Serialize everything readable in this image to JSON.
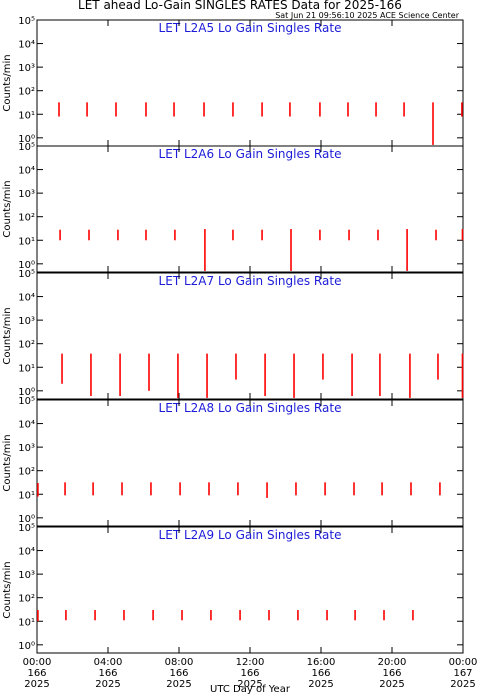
{
  "header": {
    "title": "LET ahead Lo-Gain SINGLES RATES Data for 2025-166",
    "timestamp": "Sat Jun 21 09:56:10 2025 ACE Science Center"
  },
  "chart_data": [
    {
      "type": "range",
      "title": "LET L2A5 Lo Gain Singles Rate",
      "ylabel": "Counts/min",
      "color": "#ff0000",
      "log_y": true,
      "xlim": [
        0,
        24
      ],
      "ylim": [
        0.45,
        100000
      ],
      "yticks": [
        {
          "value": 1,
          "label": "10⁰"
        },
        {
          "value": 10,
          "label": "10¹"
        },
        {
          "value": 100,
          "label": "10²"
        },
        {
          "value": 1000,
          "label": "10³"
        },
        {
          "value": 10000,
          "label": "10⁴"
        },
        {
          "value": 100000,
          "label": "10⁵"
        }
      ],
      "x": [
        1.24,
        2.82,
        4.45,
        6.14,
        7.72,
        9.41,
        11.04,
        12.68,
        14.25,
        15.94,
        17.52,
        19.1,
        20.68,
        22.31,
        23.94
      ],
      "values": [
        32,
        32,
        32,
        32,
        32,
        32,
        32,
        32,
        32,
        32,
        32,
        32,
        32,
        32,
        32
      ],
      "lows": [
        8,
        8,
        8,
        8,
        8,
        8,
        8,
        8,
        8,
        8,
        8,
        8,
        8,
        0.5,
        8
      ]
    },
    {
      "type": "range",
      "title": "LET L2A6 Lo Gain Singles Rate",
      "ylabel": "Counts/min",
      "color": "#ff0000",
      "log_y": true,
      "xlim": [
        0,
        24
      ],
      "ylim": [
        0.45,
        100000
      ],
      "yticks": [
        {
          "value": 1,
          "label": "10⁰"
        },
        {
          "value": 10,
          "label": "10¹"
        },
        {
          "value": 100,
          "label": "10²"
        },
        {
          "value": 1000,
          "label": "10³"
        },
        {
          "value": 10000,
          "label": "10⁴"
        },
        {
          "value": 100000,
          "label": "10⁵"
        }
      ],
      "x": [
        1.3,
        2.93,
        4.56,
        6.14,
        7.77,
        9.46,
        11.04,
        12.68,
        14.31,
        15.94,
        17.58,
        19.21,
        20.85,
        22.48,
        23.97
      ],
      "values": [
        28,
        28,
        28,
        28,
        28,
        30,
        28,
        28,
        30,
        28,
        28,
        28,
        30,
        28,
        30
      ],
      "lows": [
        10,
        10,
        10,
        10,
        10,
        0.5,
        10,
        10,
        0.5,
        10,
        10,
        10,
        0.5,
        10,
        10
      ]
    },
    {
      "type": "range",
      "title": "LET L2A7 Lo Gain Singles Rate",
      "ylabel": "Counts/min",
      "color": "#ff0000",
      "log_y": true,
      "xlim": [
        0,
        24
      ],
      "ylim": [
        0.45,
        100000
      ],
      "yticks": [
        {
          "value": 1,
          "label": "10⁰"
        },
        {
          "value": 10,
          "label": "10¹"
        },
        {
          "value": 100,
          "label": "10²"
        },
        {
          "value": 1000,
          "label": "10³"
        },
        {
          "value": 10000,
          "label": "10⁴"
        },
        {
          "value": 100000,
          "label": "10⁵"
        }
      ],
      "x": [
        1.41,
        3.04,
        4.68,
        6.31,
        7.94,
        9.58,
        11.21,
        12.85,
        14.48,
        16.11,
        17.75,
        19.32,
        21.01,
        22.59,
        23.97
      ],
      "values": [
        38,
        38,
        38,
        38,
        38,
        38,
        38,
        38,
        38,
        38,
        38,
        38,
        38,
        38,
        38
      ],
      "lows": [
        2,
        0.6,
        0.6,
        1,
        0.5,
        0.5,
        3,
        0.6,
        0.5,
        3,
        0.6,
        0.6,
        0.5,
        3,
        0.5
      ]
    },
    {
      "type": "range",
      "title": "LET L2A8 Lo Gain Singles Rate",
      "ylabel": "Counts/min",
      "color": "#ff0000",
      "log_y": true,
      "xlim": [
        0,
        24
      ],
      "ylim": [
        0.45,
        100000
      ],
      "yticks": [
        {
          "value": 1,
          "label": "10⁰"
        },
        {
          "value": 10,
          "label": "10¹"
        },
        {
          "value": 100,
          "label": "10²"
        },
        {
          "value": 1000,
          "label": "10³"
        },
        {
          "value": 10000,
          "label": "10⁴"
        },
        {
          "value": 100000,
          "label": "10⁵"
        }
      ],
      "x": [
        0.05,
        1.58,
        3.16,
        4.79,
        6.42,
        8.06,
        9.69,
        11.32,
        12.96,
        14.59,
        16.23,
        17.86,
        19.44,
        21.07,
        22.7
      ],
      "values": [
        30,
        32,
        32,
        32,
        32,
        32,
        32,
        32,
        32,
        32,
        32,
        32,
        32,
        32,
        32
      ],
      "lows": [
        8,
        9,
        9,
        9,
        9,
        9,
        9,
        9,
        7,
        9,
        9,
        9,
        9,
        9,
        9
      ]
    },
    {
      "type": "range",
      "title": "LET L2A9 Lo Gain Singles Rate",
      "ylabel": "Counts/min",
      "color": "#ff0000",
      "log_y": true,
      "xlim": [
        0,
        24
      ],
      "ylim": [
        0.45,
        100000
      ],
      "yticks": [
        {
          "value": 1,
          "label": "10⁰"
        },
        {
          "value": 10,
          "label": "10¹"
        },
        {
          "value": 100,
          "label": "10²"
        },
        {
          "value": 1000,
          "label": "10³"
        },
        {
          "value": 10000,
          "label": "10⁴"
        },
        {
          "value": 100000,
          "label": "10⁵"
        }
      ],
      "x": [
        0.05,
        1.63,
        3.27,
        4.9,
        6.54,
        8.17,
        9.8,
        11.44,
        13.07,
        14.7,
        16.34,
        17.92,
        19.55,
        21.18
      ],
      "values": [
        30,
        30,
        30,
        30,
        30,
        30,
        30,
        30,
        30,
        30,
        30,
        30,
        30,
        30
      ],
      "lows": [
        10,
        11,
        11,
        11,
        11,
        11,
        11,
        11,
        11,
        11,
        11,
        11,
        11,
        11
      ],
      "xlabel": "UTC Day of Year",
      "xticks": [
        {
          "value": 0,
          "label": "00:00\n166\n2025"
        },
        {
          "value": 4,
          "label": "04:00\n166\n2025"
        },
        {
          "value": 8,
          "label": "08:00\n166\n2025"
        },
        {
          "value": 12,
          "label": "12:00\n166\n2025"
        },
        {
          "value": 16,
          "label": "16:00\n166\n2025"
        },
        {
          "value": 20,
          "label": "20:00\n166\n2025"
        },
        {
          "value": 24,
          "label": "00:00\n167\n2025"
        }
      ]
    }
  ]
}
